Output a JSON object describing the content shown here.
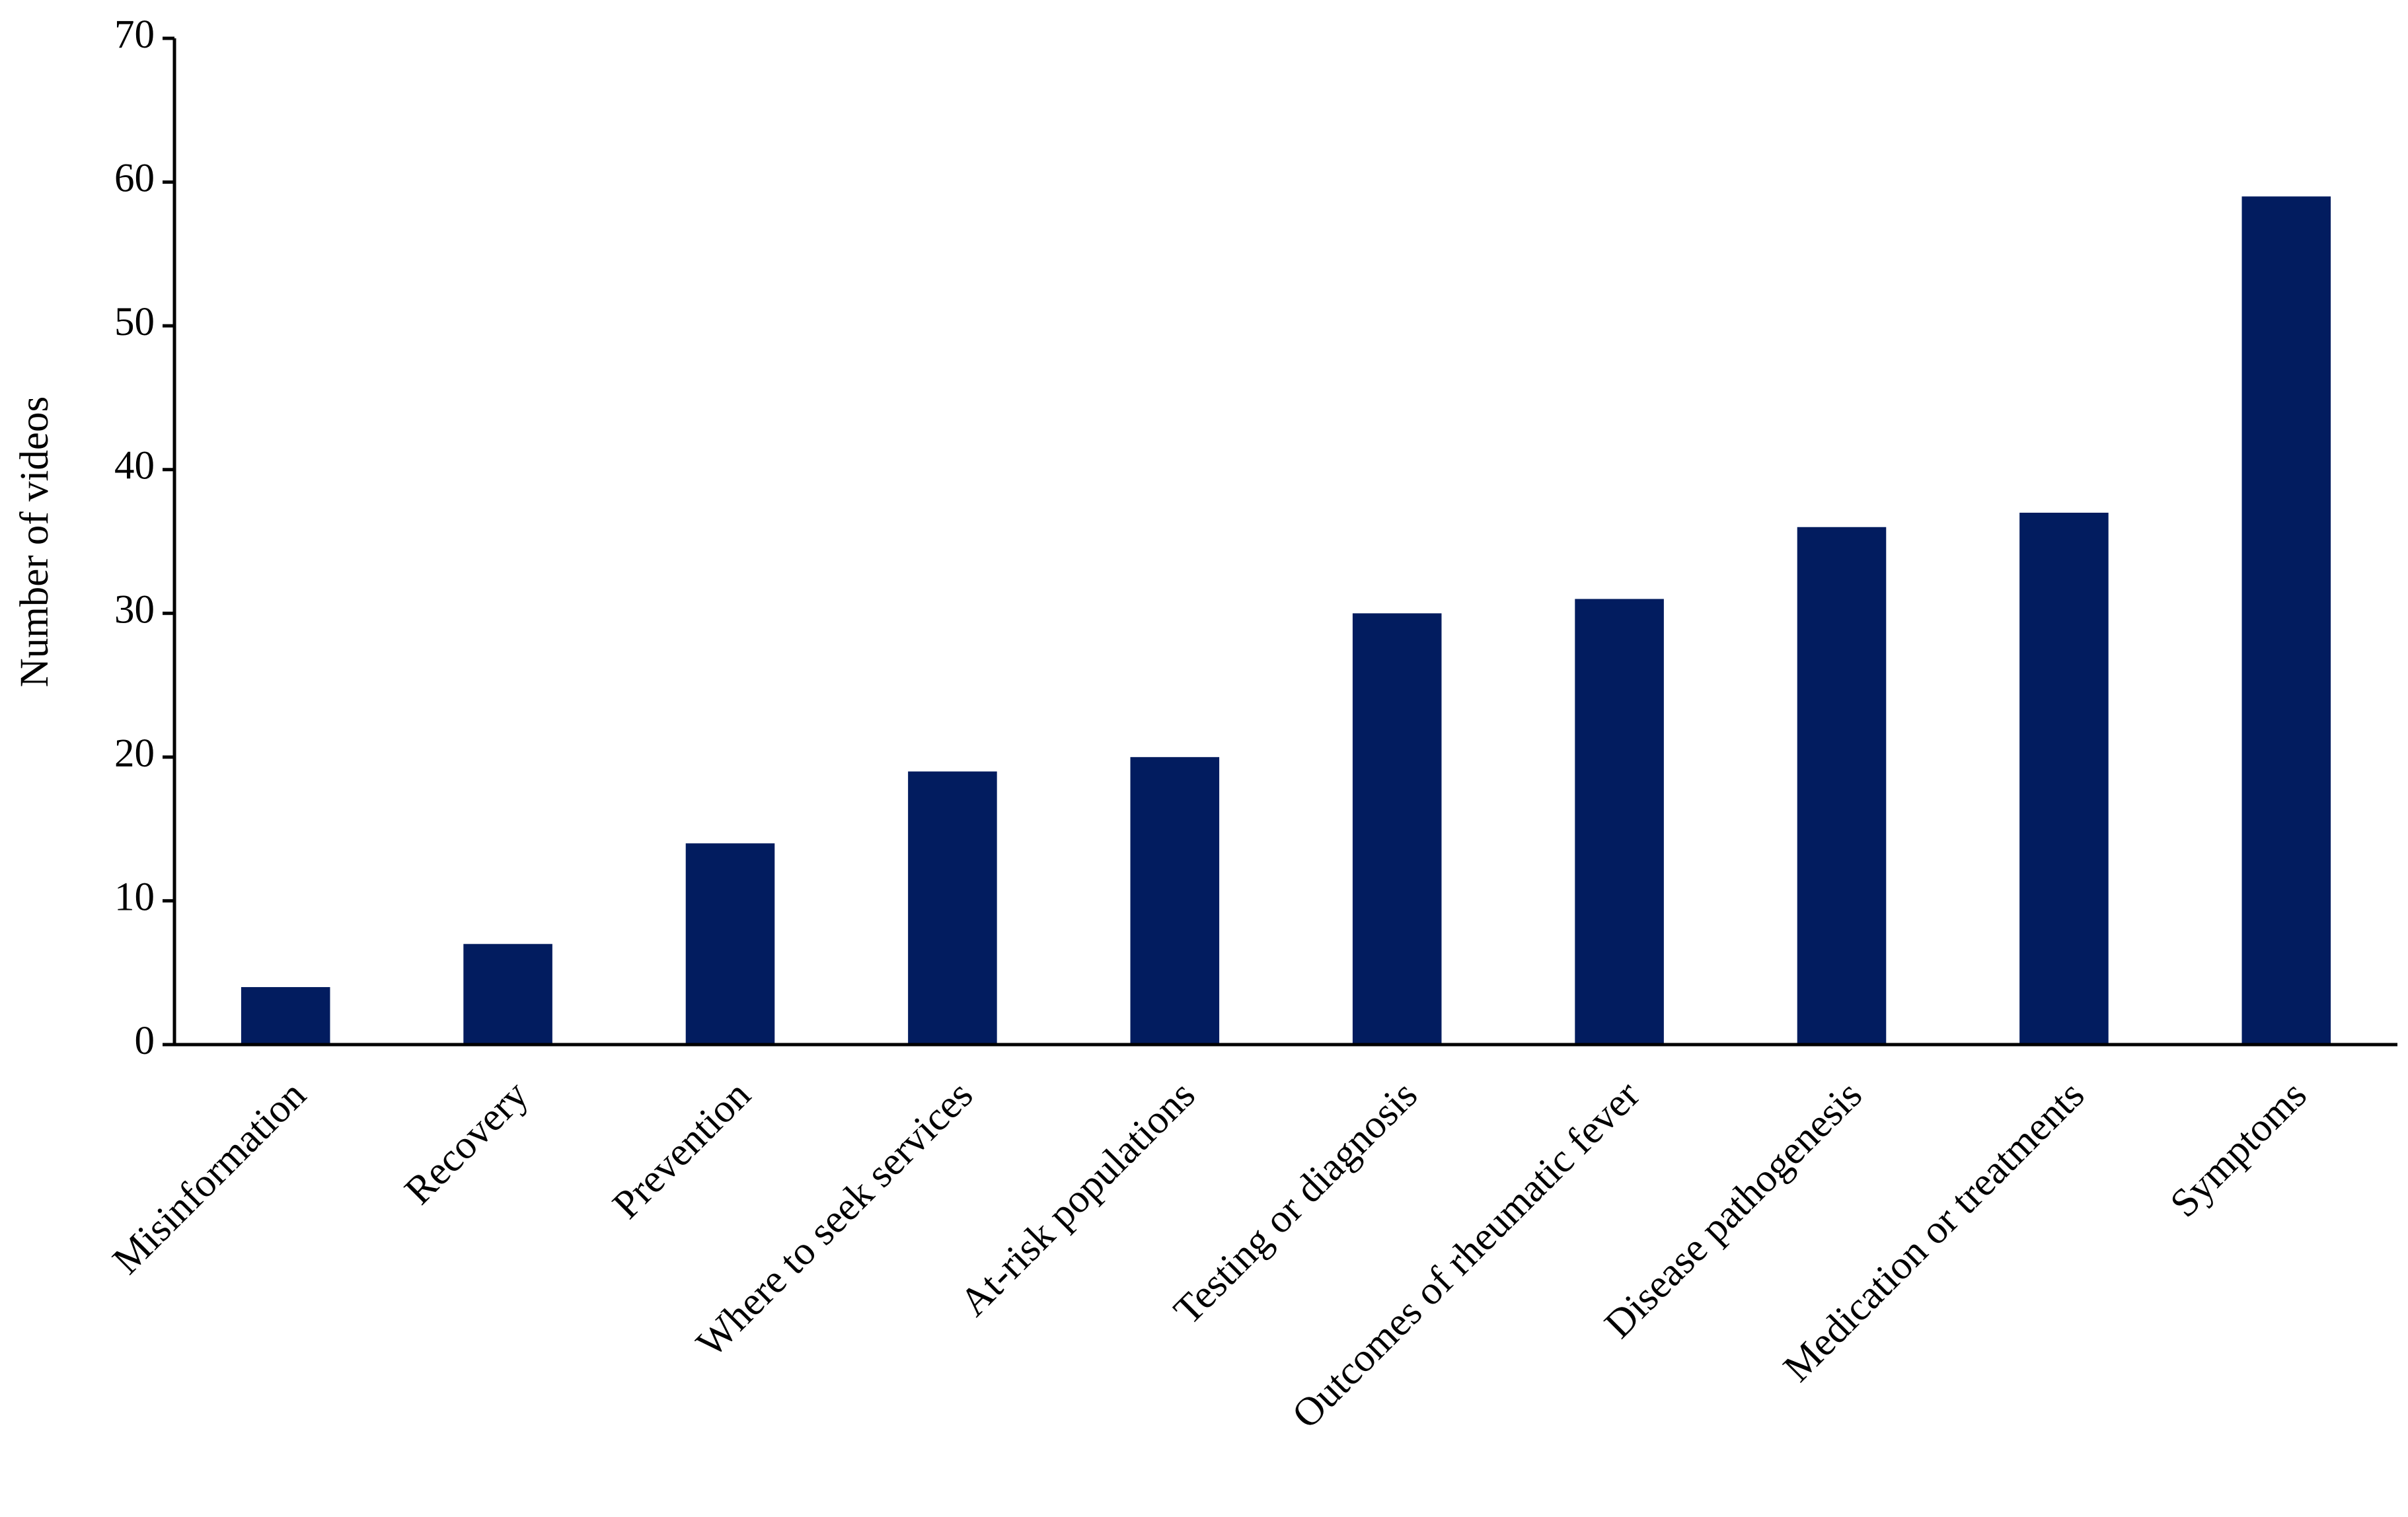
{
  "chart_data": {
    "type": "bar",
    "y_label": "Number of videos",
    "categories": [
      "Misinformation",
      "Recovery",
      "Prevention",
      "Where to seek services",
      "At-risk populations",
      "Testing or diagnosis",
      "Outcomes of rheumatic fever",
      "Disease pathogenesis",
      "Medication or treatments",
      "Symptoms"
    ],
    "values": [
      4,
      7,
      14,
      19,
      20,
      30,
      31,
      36,
      37,
      59
    ],
    "color": "#021c5f",
    "ylim": [
      0,
      70
    ],
    "yticks": [
      0,
      10,
      20,
      30,
      40,
      50,
      60,
      70
    ],
    "grid": false
  }
}
